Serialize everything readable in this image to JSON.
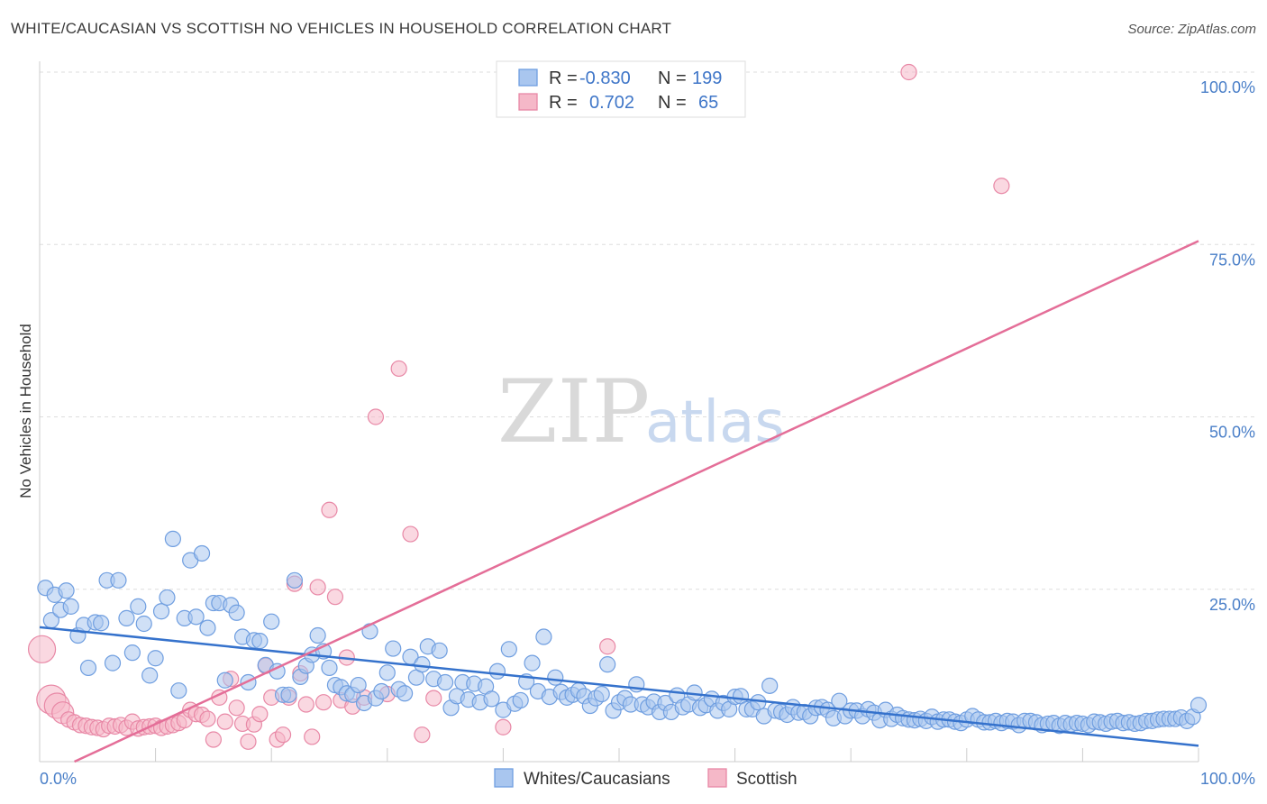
{
  "title": "WHITE/CAUCASIAN VS SCOTTISH NO VEHICLES IN HOUSEHOLD CORRELATION CHART",
  "source": "Source: ZipAtlas.com",
  "watermark": {
    "zip": "ZIP",
    "atlas": "atlas"
  },
  "legend": {
    "rows": [
      {
        "r_label": "R =",
        "r_value": "-0.830",
        "n_label": "N =",
        "n_value": "199",
        "color": "#a9c6ef",
        "stroke": "#6f9ee0"
      },
      {
        "r_label": "R =",
        "r_value": "0.702",
        "n_label": "N =",
        "n_value": "65",
        "color": "#f5b8c8",
        "stroke": "#e888a6"
      }
    ]
  },
  "colors": {
    "blue_fill": "#a9c6ef",
    "blue_stroke": "#6f9ee0",
    "blue_line": "#3572cc",
    "pink_fill": "#f5b8c8",
    "pink_stroke": "#e888a6",
    "pink_line": "#e46e98",
    "tick": "#4a7fc8"
  },
  "chart_data": {
    "type": "scatter",
    "ylabel": "No Vehicles in Household",
    "xlabel": "",
    "xlim": [
      0,
      100
    ],
    "ylim": [
      0,
      100
    ],
    "x_tick_labels": [
      "0.0%",
      "100.0%"
    ],
    "y_ticks": [
      25,
      50,
      75,
      100
    ],
    "y_tick_labels": [
      "25.0%",
      "50.0%",
      "75.0%",
      "100.0%"
    ],
    "grid": true,
    "legend_position": "top-center",
    "series": [
      {
        "name": "Whites/Caucasians",
        "trend": {
          "x": [
            0,
            100
          ],
          "y": [
            19.5,
            2.3
          ]
        },
        "points": [
          [
            0.5,
            25.2
          ],
          [
            1,
            20.5
          ],
          [
            1.3,
            24.2
          ],
          [
            1.8,
            22
          ],
          [
            2.3,
            24.8
          ],
          [
            2.7,
            22.5
          ],
          [
            3.3,
            18.3
          ],
          [
            3.8,
            19.8
          ],
          [
            4.2,
            13.6
          ],
          [
            4.8,
            20.2
          ],
          [
            5.3,
            20.1
          ],
          [
            5.8,
            26.3
          ],
          [
            6.3,
            14.3
          ],
          [
            6.8,
            26.3
          ],
          [
            7.5,
            20.8
          ],
          [
            8,
            15.8
          ],
          [
            8.5,
            22.5
          ],
          [
            9,
            20
          ],
          [
            9.5,
            12.5
          ],
          [
            10,
            15
          ],
          [
            10.5,
            21.8
          ],
          [
            11,
            23.8
          ],
          [
            11.5,
            32.3
          ],
          [
            12,
            10.3
          ],
          [
            12.5,
            20.8
          ],
          [
            13,
            29.2
          ],
          [
            13.5,
            21
          ],
          [
            14,
            30.2
          ],
          [
            14.5,
            19.4
          ],
          [
            15,
            23
          ],
          [
            15.5,
            23
          ],
          [
            16,
            11.8
          ],
          [
            16.5,
            22.7
          ],
          [
            17,
            21.6
          ],
          [
            17.5,
            18.1
          ],
          [
            18,
            11.5
          ],
          [
            18.5,
            17.6
          ],
          [
            19,
            17.5
          ],
          [
            19.5,
            14
          ],
          [
            20,
            20.3
          ],
          [
            20.5,
            13.1
          ],
          [
            21,
            9.7
          ],
          [
            21.5,
            9.7
          ],
          [
            22,
            26.3
          ],
          [
            22.5,
            12.3
          ],
          [
            23,
            13.9
          ],
          [
            23.5,
            15.5
          ],
          [
            24,
            18.3
          ],
          [
            24.5,
            16
          ],
          [
            25,
            13.6
          ],
          [
            25.5,
            11.1
          ],
          [
            26,
            10.8
          ],
          [
            26.5,
            9.9
          ],
          [
            27,
            9.7
          ],
          [
            27.5,
            11.1
          ],
          [
            28,
            8.5
          ],
          [
            28.5,
            18.9
          ],
          [
            29,
            9.2
          ],
          [
            29.5,
            10.2
          ],
          [
            30,
            12.9
          ],
          [
            30.5,
            16.4
          ],
          [
            31,
            10.5
          ],
          [
            31.5,
            9.9
          ],
          [
            32,
            15.2
          ],
          [
            32.5,
            12.2
          ],
          [
            33,
            14.1
          ],
          [
            33.5,
            16.7
          ],
          [
            34,
            12
          ],
          [
            34.5,
            16.1
          ],
          [
            35,
            11.5
          ],
          [
            35.5,
            7.8
          ],
          [
            36,
            9.5
          ],
          [
            36.5,
            11.5
          ],
          [
            37,
            9
          ],
          [
            37.5,
            11.3
          ],
          [
            38,
            8.6
          ],
          [
            38.5,
            10.9
          ],
          [
            39,
            9.1
          ],
          [
            39.5,
            13.1
          ],
          [
            40,
            7.5
          ],
          [
            40.5,
            16.3
          ],
          [
            41,
            8.4
          ],
          [
            41.5,
            8.9
          ],
          [
            42,
            11.6
          ],
          [
            42.5,
            14.3
          ],
          [
            43,
            10.2
          ],
          [
            43.5,
            18.1
          ],
          [
            44,
            9.4
          ],
          [
            44.5,
            12.2
          ],
          [
            45,
            10.1
          ],
          [
            45.5,
            9.3
          ],
          [
            46,
            9.7
          ],
          [
            46.5,
            10.3
          ],
          [
            47,
            9.5
          ],
          [
            47.5,
            8.1
          ],
          [
            48,
            9.2
          ],
          [
            48.5,
            9.8
          ],
          [
            49,
            14.1
          ],
          [
            49.5,
            7.4
          ],
          [
            50,
            8.6
          ],
          [
            50.5,
            9.2
          ],
          [
            51,
            8.3
          ],
          [
            51.5,
            11.2
          ],
          [
            52,
            8.3
          ],
          [
            52.5,
            7.9
          ],
          [
            53,
            8.7
          ],
          [
            53.5,
            7.2
          ],
          [
            54,
            8.5
          ],
          [
            54.5,
            7.2
          ],
          [
            55,
            9.6
          ],
          [
            55.5,
            7.9
          ],
          [
            56,
            8.3
          ],
          [
            56.5,
            10
          ],
          [
            57,
            7.8
          ],
          [
            57.5,
            8.2
          ],
          [
            58,
            9.1
          ],
          [
            58.5,
            7.4
          ],
          [
            59,
            8.5
          ],
          [
            59.5,
            7.6
          ],
          [
            60,
            9.4
          ],
          [
            60.5,
            9.5
          ],
          [
            61,
            7.6
          ],
          [
            61.5,
            7.6
          ],
          [
            62,
            8.6
          ],
          [
            62.5,
            6.6
          ],
          [
            63,
            11
          ],
          [
            63.5,
            7.4
          ],
          [
            64,
            7.2
          ],
          [
            64.5,
            6.8
          ],
          [
            65,
            7.9
          ],
          [
            65.5,
            7.1
          ],
          [
            66,
            7.2
          ],
          [
            66.5,
            6.6
          ],
          [
            67,
            7.8
          ],
          [
            67.5,
            7.9
          ],
          [
            68,
            7.5
          ],
          [
            68.5,
            6.3
          ],
          [
            69,
            8.8
          ],
          [
            69.5,
            6.6
          ],
          [
            70,
            7.4
          ],
          [
            70.5,
            7.4
          ],
          [
            71,
            6.6
          ],
          [
            71.5,
            7.6
          ],
          [
            72,
            7.1
          ],
          [
            72.5,
            6
          ],
          [
            73,
            7.5
          ],
          [
            73.5,
            6.2
          ],
          [
            74,
            6.8
          ],
          [
            74.5,
            6.3
          ],
          [
            75,
            6.1
          ],
          [
            75.5,
            6
          ],
          [
            76,
            6.2
          ],
          [
            76.5,
            5.9
          ],
          [
            77,
            6.5
          ],
          [
            77.5,
            5.8
          ],
          [
            78,
            6.1
          ],
          [
            78.5,
            6.1
          ],
          [
            79,
            5.8
          ],
          [
            79.5,
            5.6
          ],
          [
            80,
            6.1
          ],
          [
            80.5,
            6.6
          ],
          [
            81,
            6.1
          ],
          [
            81.5,
            5.7
          ],
          [
            82,
            5.7
          ],
          [
            82.5,
            5.9
          ],
          [
            83,
            5.6
          ],
          [
            83.5,
            5.9
          ],
          [
            84,
            5.8
          ],
          [
            84.5,
            5.3
          ],
          [
            85,
            5.9
          ],
          [
            85.5,
            5.9
          ],
          [
            86,
            5.7
          ],
          [
            86.5,
            5.3
          ],
          [
            87,
            5.5
          ],
          [
            87.5,
            5.6
          ],
          [
            88,
            5.2
          ],
          [
            88.5,
            5.6
          ],
          [
            89,
            5.4
          ],
          [
            89.5,
            5.6
          ],
          [
            90,
            5.5
          ],
          [
            90.5,
            5.3
          ],
          [
            91,
            5.8
          ],
          [
            91.5,
            5.7
          ],
          [
            92,
            5.5
          ],
          [
            92.5,
            5.8
          ],
          [
            93,
            5.9
          ],
          [
            93.5,
            5.6
          ],
          [
            94,
            5.7
          ],
          [
            94.5,
            5.5
          ],
          [
            95,
            5.6
          ],
          [
            95.5,
            5.9
          ],
          [
            96,
            5.9
          ],
          [
            96.5,
            6.1
          ],
          [
            97,
            6.2
          ],
          [
            97.5,
            6.2
          ],
          [
            98,
            6.2
          ],
          [
            98.5,
            6.4
          ],
          [
            99,
            5.9
          ],
          [
            99.5,
            6.5
          ],
          [
            100,
            8.2
          ]
        ]
      },
      {
        "name": "Scottish",
        "trend": {
          "x": [
            3,
            100
          ],
          "y": [
            0,
            75.5
          ]
        },
        "points": [
          [
            0.2,
            16.3
          ],
          [
            1,
            9
          ],
          [
            1.5,
            8.1
          ],
          [
            2,
            7.1
          ],
          [
            2.5,
            6.1
          ],
          [
            3,
            5.7
          ],
          [
            3.5,
            5.3
          ],
          [
            4,
            5.2
          ],
          [
            4.5,
            5
          ],
          [
            5,
            4.9
          ],
          [
            5.5,
            4.7
          ],
          [
            6,
            5.2
          ],
          [
            6.5,
            5.1
          ],
          [
            7,
            5.3
          ],
          [
            7.5,
            4.9
          ],
          [
            8,
            5.8
          ],
          [
            8.5,
            4.8
          ],
          [
            9,
            5
          ],
          [
            9.5,
            5.1
          ],
          [
            10,
            5.2
          ],
          [
            10.5,
            4.9
          ],
          [
            11,
            5.1
          ],
          [
            11.5,
            5.3
          ],
          [
            12,
            5.6
          ],
          [
            12.5,
            6
          ],
          [
            13,
            7.5
          ],
          [
            13.5,
            6.9
          ],
          [
            14,
            6.8
          ],
          [
            14.5,
            6.2
          ],
          [
            15,
            3.2
          ],
          [
            15.5,
            9.3
          ],
          [
            16,
            5.8
          ],
          [
            16.5,
            12
          ],
          [
            17,
            7.8
          ],
          [
            17.5,
            5.5
          ],
          [
            18,
            2.9
          ],
          [
            18.5,
            5.4
          ],
          [
            19,
            6.9
          ],
          [
            19.5,
            13.9
          ],
          [
            20,
            9.3
          ],
          [
            20.5,
            3.2
          ],
          [
            21,
            3.9
          ],
          [
            21.5,
            9.3
          ],
          [
            22,
            25.8
          ],
          [
            22.5,
            12.8
          ],
          [
            23,
            8.3
          ],
          [
            23.5,
            3.6
          ],
          [
            24,
            25.3
          ],
          [
            24.5,
            8.6
          ],
          [
            25,
            36.5
          ],
          [
            25.5,
            23.9
          ],
          [
            26,
            8.9
          ],
          [
            26.5,
            15.1
          ],
          [
            27,
            8
          ],
          [
            28,
            9.3
          ],
          [
            29,
            50
          ],
          [
            30,
            9.8
          ],
          [
            31,
            57
          ],
          [
            32,
            33
          ],
          [
            33,
            3.9
          ],
          [
            34,
            9.2
          ],
          [
            40,
            5
          ],
          [
            49,
            16.7
          ],
          [
            75,
            100
          ],
          [
            83,
            83.5
          ]
        ]
      }
    ]
  },
  "bottom_legend": [
    "Whites/Caucasians",
    "Scottish"
  ]
}
